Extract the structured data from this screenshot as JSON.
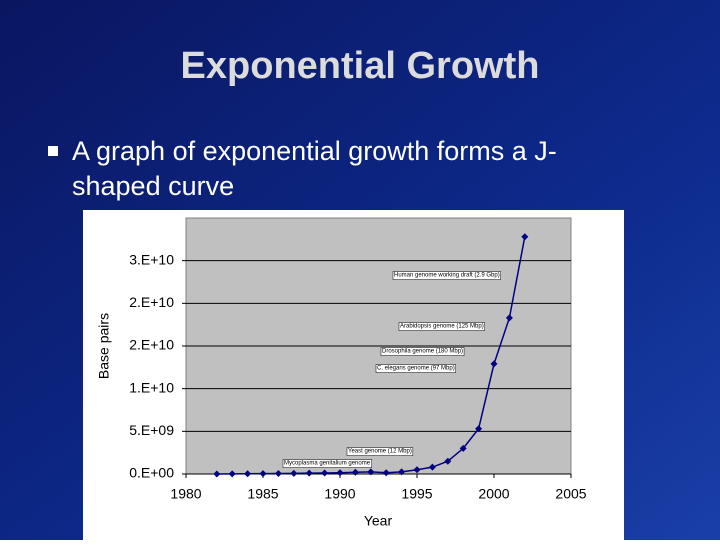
{
  "slide": {
    "title": "Exponential Growth",
    "bullet_lines": [
      "A graph of exponential growth forms a J-",
      "shaped curve"
    ]
  },
  "chart_data": {
    "type": "line",
    "x_label": "Year",
    "y_label": "Base pairs",
    "x": [
      1982,
      1983,
      1984,
      1985,
      1986,
      1987,
      1988,
      1989,
      1990,
      1991,
      1992,
      1993,
      1994,
      1995,
      1996,
      1997,
      1998,
      1999,
      2000,
      2001,
      2002
    ],
    "series": [
      {
        "name": "Base pairs",
        "color": "#000080",
        "values": [
          0,
          20000000,
          30000000,
          50000000,
          60000000,
          80000000,
          100000000,
          120000000,
          150000000,
          200000000,
          250000000,
          150000000,
          250000000,
          500000000,
          800000000,
          1500000000,
          3000000000,
          5300000000,
          12900000000,
          18300000000,
          27800000000
        ]
      }
    ],
    "xlim": [
      1980,
      2005
    ],
    "xticks": [
      1980,
      1985,
      1990,
      1995,
      2000,
      2005
    ],
    "ylim": [
      0,
      30000000000
    ],
    "yticks": [
      {
        "value": 0,
        "label": "0.E+00"
      },
      {
        "value": 5000000000,
        "label": "5.E+09"
      },
      {
        "value": 10000000000,
        "label": "1.E+10"
      },
      {
        "value": 15000000000,
        "label": "2.E+10"
      },
      {
        "value": 20000000000,
        "label": "2.E+10"
      },
      {
        "value": 25000000000,
        "label": "3.E+10"
      }
    ],
    "grid": true,
    "annotations": [
      "Human genome working draft (2.9 Gbp)",
      "Arabidopsis genome (125 Mbp)",
      "Drosophila genome (180 Mbp)",
      "C. elegans genome (97 Mbp)",
      "Yeast genome (12 Mbp)",
      "Mycoplasma genitalium genome"
    ]
  }
}
